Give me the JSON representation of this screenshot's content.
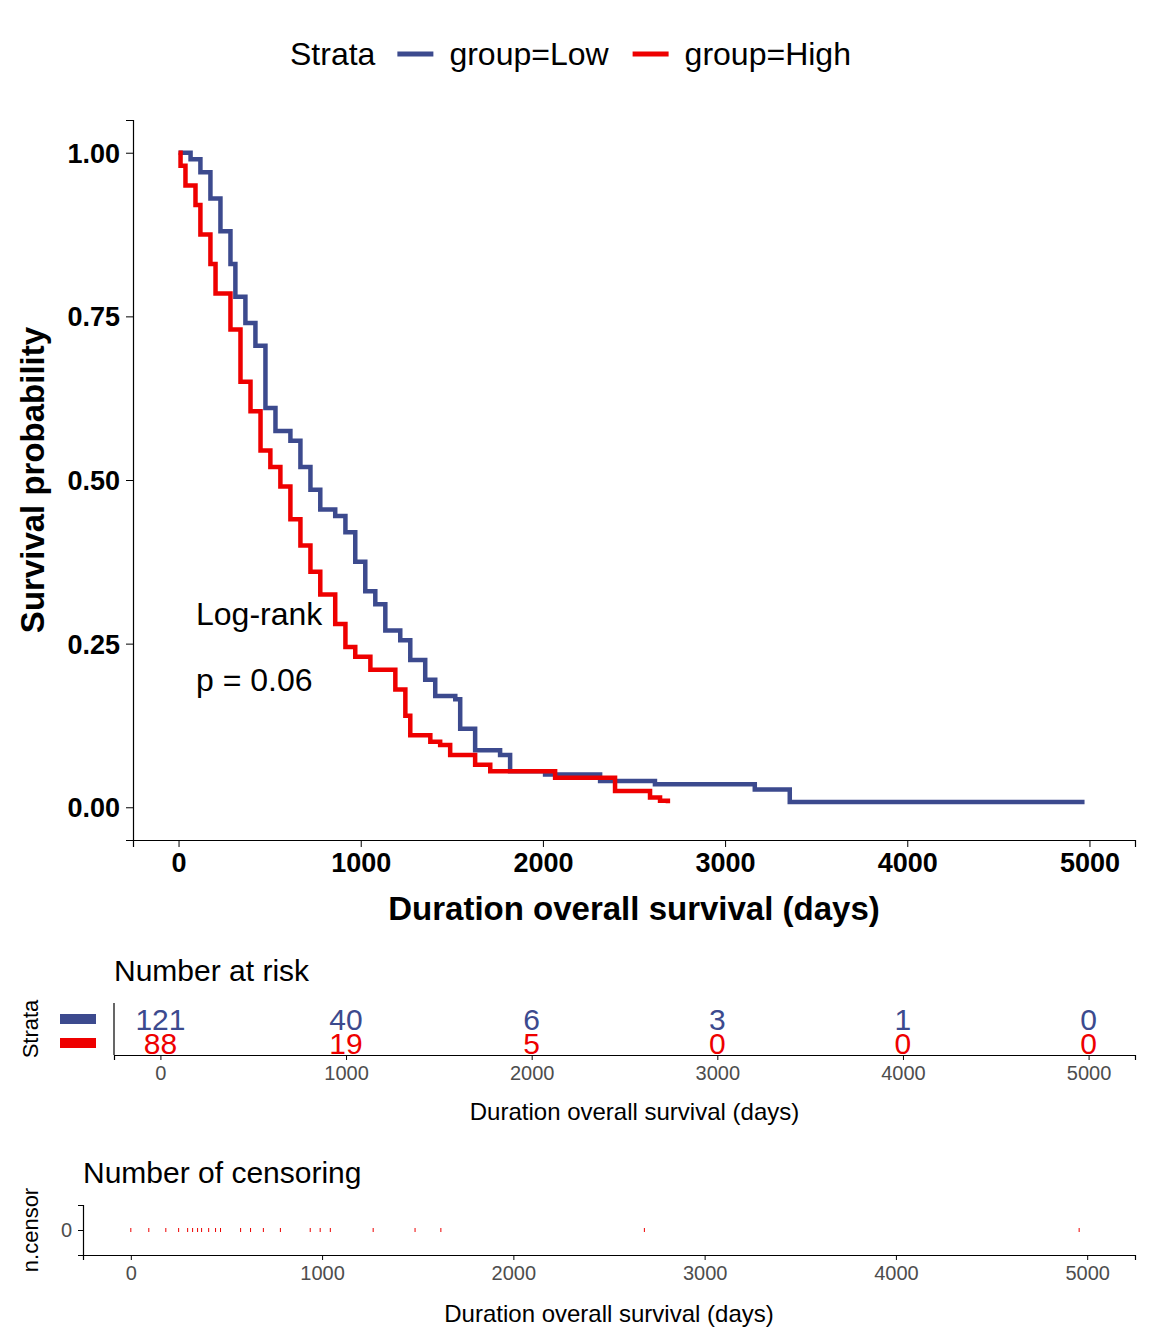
{
  "chart_data": [
    {
      "type": "line",
      "line_style": "step",
      "x_label": "Duration overall survival (days)",
      "y_label": "Survival probability",
      "legend_title": "Strata",
      "legend": "top",
      "xlim": [
        -250,
        5250
      ],
      "xticks": [
        0,
        1000,
        2000,
        3000,
        4000,
        5000
      ],
      "ylim": [
        -0.05,
        1.05
      ],
      "yticks": [
        {
          "value": 0,
          "label": "0.00"
        },
        {
          "value": 0.25,
          "label": "0.25"
        },
        {
          "value": 0.5,
          "label": "0.50"
        },
        {
          "value": 0.75,
          "label": "0.75"
        },
        {
          "value": 1,
          "label": "1.00"
        }
      ],
      "annotations": [
        "Log-rank",
        "p = 0.06"
      ],
      "series": [
        {
          "name": "group=Low",
          "color": "#3C4A8E",
          "x": [
            0,
            66,
            120,
            175,
            230,
            285,
            312,
            367,
            422,
            477,
            532,
            614,
            669,
            724,
            778,
            860,
            916,
            970,
            1025,
            1080,
            1135,
            1217,
            1272,
            1354,
            1409,
            1519,
            1546,
            1628,
            1765,
            1820,
            2012,
            2314,
            2615,
            3163,
            3355,
            4973
          ],
          "values": [
            1,
            0.99,
            0.97,
            0.93,
            0.88,
            0.83,
            0.78,
            0.74,
            0.705,
            0.61,
            0.575,
            0.56,
            0.52,
            0.485,
            0.455,
            0.445,
            0.42,
            0.375,
            0.33,
            0.31,
            0.27,
            0.255,
            0.225,
            0.195,
            0.17,
            0.165,
            0.12,
            0.087,
            0.08,
            0.055,
            0.05,
            0.04,
            0.035,
            0.027,
            0.008,
            0.008
          ]
        },
        {
          "name": "group=High",
          "color": "#EE0000",
          "x": [
            0,
            11,
            38,
            93,
            120,
            175,
            203,
            285,
            340,
            395,
            450,
            504,
            559,
            614,
            669,
            724,
            778,
            860,
            916,
            970,
            1053,
            1190,
            1245,
            1272,
            1382,
            1436,
            1491,
            1628,
            1711,
            2067,
            2396,
            2588,
            2643,
            2686
          ],
          "values": [
            1,
            0.98,
            0.95,
            0.92,
            0.875,
            0.83,
            0.785,
            0.73,
            0.65,
            0.605,
            0.545,
            0.52,
            0.49,
            0.44,
            0.4,
            0.36,
            0.325,
            0.28,
            0.245,
            0.23,
            0.21,
            0.18,
            0.14,
            0.11,
            0.1,
            0.095,
            0.08,
            0.065,
            0.055,
            0.045,
            0.025,
            0.015,
            0.01,
            0.006
          ]
        }
      ]
    },
    {
      "type": "table",
      "title": "Number at risk",
      "y_label": "Strata",
      "x_label": "Duration overall survival (days)",
      "data_labels": true,
      "xlim": [
        -250,
        5250
      ],
      "xticks": [
        0,
        1000,
        2000,
        3000,
        4000,
        5000
      ],
      "x": [
        0,
        1000,
        2000,
        3000,
        4000,
        5000
      ],
      "series": [
        {
          "color": "#3C4A8E",
          "values": [
            121,
            40,
            6,
            3,
            1,
            0
          ]
        },
        {
          "color": "#EE0000",
          "values": [
            88,
            19,
            5,
            0,
            0,
            0
          ]
        }
      ]
    },
    {
      "type": "scatter",
      "marker": "tick",
      "title": "Number of censoring",
      "y_label": "n.censor",
      "x_label": "Duration overall survival (days)",
      "color": "#EE0000",
      "xlim": [
        -250,
        5250
      ],
      "xticks": [
        0,
        1000,
        2000,
        3000,
        4000,
        5000
      ],
      "ylim": [
        -1,
        1
      ],
      "yticks": [
        0
      ],
      "x": [
        0,
        94,
        183,
        250,
        297,
        323,
        349,
        370,
        407,
        443,
        469,
        574,
        626,
        693,
        782,
        938,
        990,
        1043,
        1267,
        1486,
        1621,
        2685,
        4958
      ],
      "values": [
        0,
        0,
        0,
        0,
        0,
        0,
        0,
        0,
        0,
        0,
        0,
        0,
        0,
        0,
        0,
        0,
        0,
        0,
        0,
        0,
        0,
        0,
        0
      ]
    }
  ]
}
